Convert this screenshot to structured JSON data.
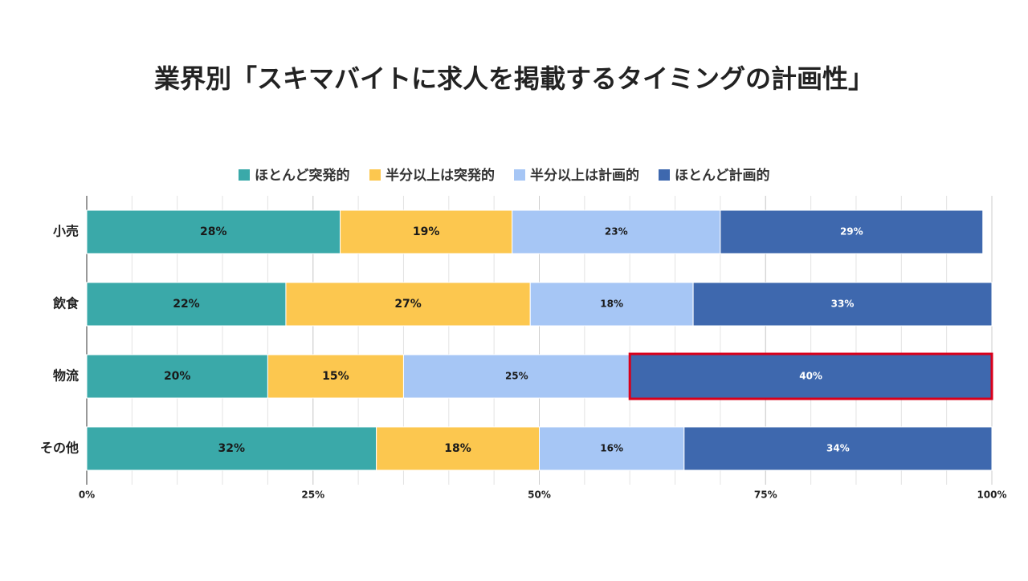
{
  "chart_data": {
    "type": "stacked-bar-horizontal",
    "title": "業界別「スキマバイトに求人を掲載するタイミングの計画性」",
    "categories": [
      "小売",
      "飲食",
      "物流",
      "その他"
    ],
    "series": [
      {
        "name": "ほとんど突発的",
        "color": "#3aa9a9",
        "label_color": "#1a1a1a",
        "values": [
          28,
          22,
          20,
          32
        ],
        "value_labels": [
          "28%",
          "22%",
          "20%",
          "32%"
        ]
      },
      {
        "name": "半分以上は突発的",
        "color": "#fcc74f",
        "label_color": "#1a1a1a",
        "values": [
          19,
          27,
          15,
          18
        ],
        "value_labels": [
          "19%",
          "27%",
          "15%",
          "18%"
        ]
      },
      {
        "name": "半分以上は計画的",
        "color": "#a6c6f5",
        "label_color": "#1a1a1a",
        "values": [
          23,
          18,
          25,
          16
        ],
        "value_labels": [
          "23%",
          "18%",
          "25%",
          "16%"
        ]
      },
      {
        "name": "ほとんど計画的",
        "color": "#3e68ae",
        "label_color": "#ffffff",
        "values": [
          29,
          33,
          40,
          34
        ],
        "value_labels": [
          "29%",
          "33%",
          "40%",
          "34%"
        ]
      }
    ],
    "xlim": [
      0,
      100
    ],
    "xticks": [
      {
        "value": 0,
        "label": "0%"
      },
      {
        "value": 25,
        "label": "25%"
      },
      {
        "value": 50,
        "label": "50%"
      },
      {
        "value": 75,
        "label": "75%"
      },
      {
        "value": 100,
        "label": "100%"
      }
    ],
    "minor_grid_step": 5,
    "grid": true,
    "legend": "top",
    "highlight": {
      "category": "物流",
      "series": "ほとんど計画的",
      "color": "#d9001b"
    }
  }
}
